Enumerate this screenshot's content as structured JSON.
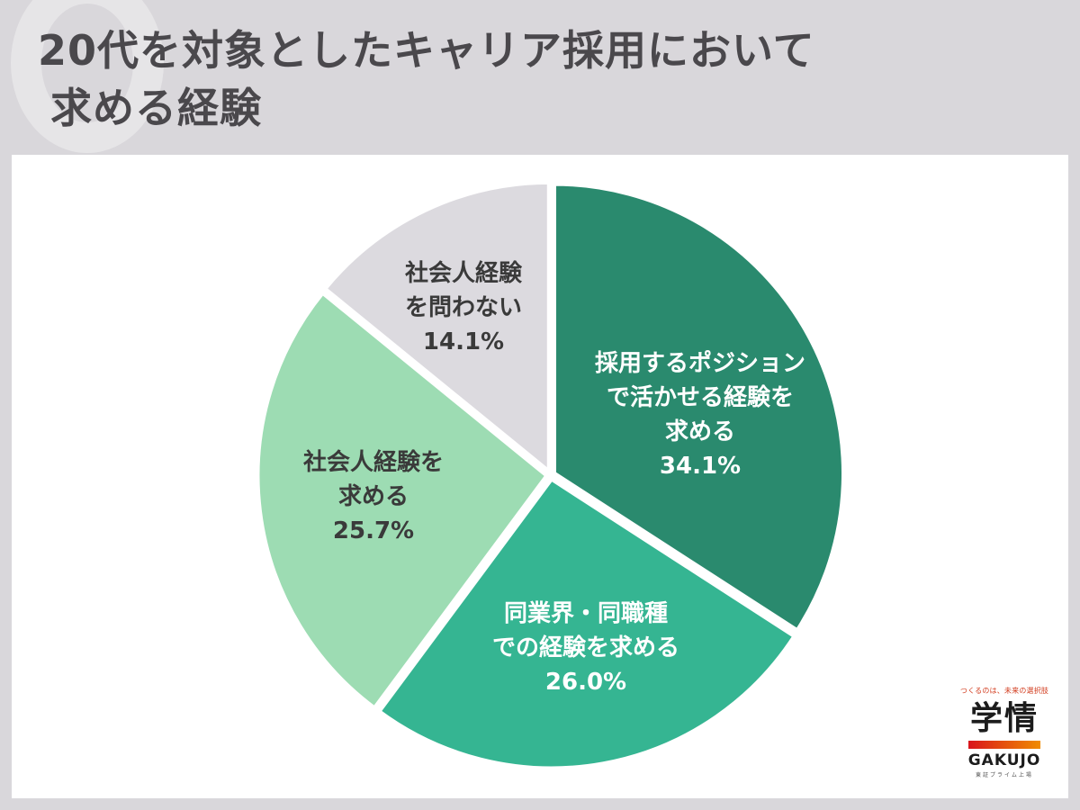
{
  "header": {
    "title_line1": "20代を対象としたキャリア採用において",
    "title_line2": "求める経験"
  },
  "chart_data": {
    "type": "pie",
    "title": "20代を対象としたキャリア採用において求める経験",
    "start_angle": "12 o'clock",
    "direction": "clockwise",
    "categories": [
      "採用するポジションで活かせる経験を求める",
      "同業界・同職種での経験を求める",
      "社会人経験を求める",
      "社会人経験を問わない"
    ],
    "values": [
      34.1,
      26.0,
      25.7,
      14.1
    ],
    "unit": "%",
    "colors": [
      "#2a8a6e",
      "#35b592",
      "#9ddcb3",
      "#dcdadf"
    ],
    "label_colors": [
      "#ffffff",
      "#ffffff",
      "#3a3a3a",
      "#3a3a3a"
    ],
    "slices": [
      {
        "label_lines": [
          "採用するポジション",
          "で活かせる経験を",
          "求める"
        ],
        "value_text": "34.1%"
      },
      {
        "label_lines": [
          "同業界・同職種",
          "での経験を求める"
        ],
        "value_text": "26.0%"
      },
      {
        "label_lines": [
          "社会人経験を",
          "求める"
        ],
        "value_text": "25.7%"
      },
      {
        "label_lines": [
          "社会人経験",
          "を問わない"
        ],
        "value_text": "14.1%"
      }
    ],
    "legend": "none (labels inside slices)"
  },
  "logo": {
    "tagline": "つくるのは、未来の選択肢",
    "kanji": "学情",
    "english": "GAKUJO",
    "sub": "東証プライム上場",
    "bar_colors": [
      "#d9151c",
      "#f08c00"
    ]
  }
}
